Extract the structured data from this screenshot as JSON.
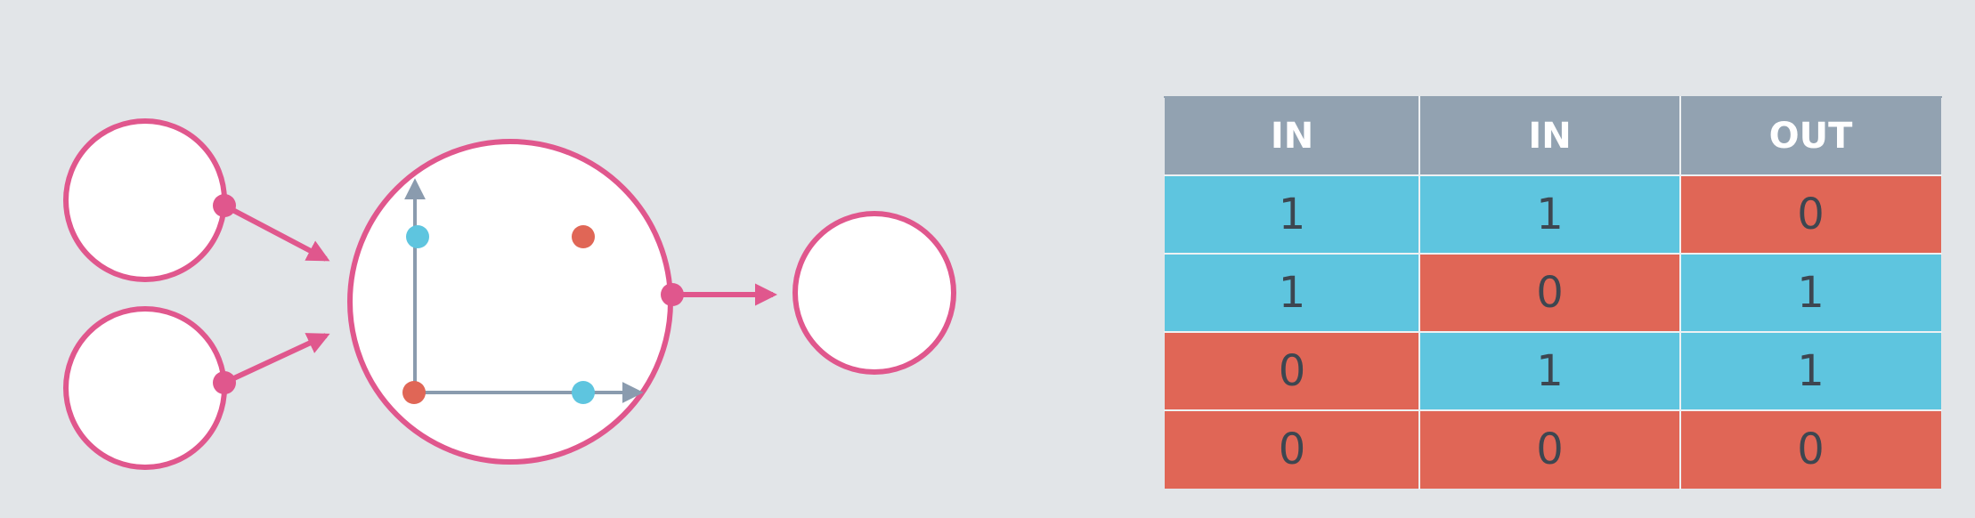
{
  "colors": {
    "background": "#e2e5e8",
    "neuron_stroke": "#e0578d",
    "axis": "#8a9bae",
    "blue": "#5ec5df",
    "red": "#e06656",
    "header": "#92a2b1"
  },
  "diagram": {
    "input_neurons": 2,
    "output_neurons": 1,
    "scatter_points": [
      {
        "x": 0,
        "y": 1,
        "class": "blue"
      },
      {
        "x": 1,
        "y": 1,
        "class": "red"
      },
      {
        "x": 0,
        "y": 0,
        "class": "red"
      },
      {
        "x": 1,
        "y": 0,
        "class": "blue"
      }
    ]
  },
  "table": {
    "headers": [
      "IN",
      "IN",
      "OUT"
    ],
    "rows": [
      [
        "1",
        "1",
        "0"
      ],
      [
        "1",
        "0",
        "1"
      ],
      [
        "0",
        "1",
        "1"
      ],
      [
        "0",
        "0",
        "0"
      ]
    ]
  }
}
